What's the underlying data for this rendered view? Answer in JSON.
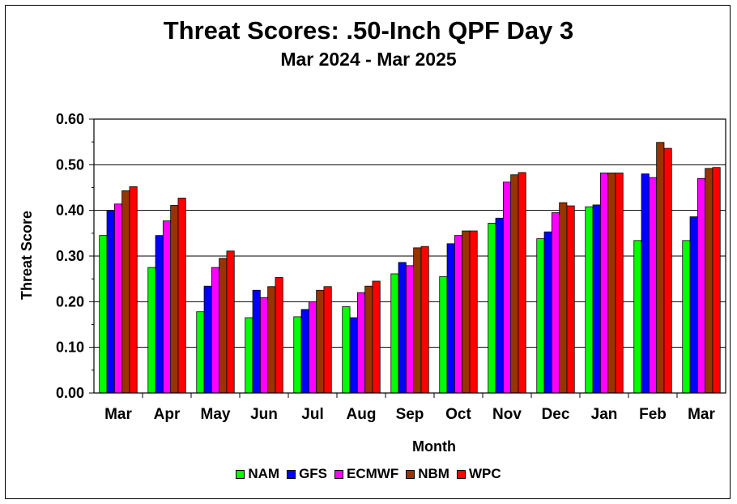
{
  "chart_data": {
    "type": "bar",
    "title": "Threat Scores:  .50-Inch QPF Day 3",
    "subtitle": "Mar 2024 - Mar 2025",
    "xlabel": "Month",
    "ylabel": "Threat Score",
    "ylim": [
      0,
      0.6
    ],
    "yticks": [
      "0.00",
      "0.10",
      "0.20",
      "0.30",
      "0.40",
      "0.50",
      "0.60"
    ],
    "grid": true,
    "legend_position": "bottom",
    "categories": [
      "Mar",
      "Apr",
      "May",
      "Jun",
      "Jul",
      "Aug",
      "Sep",
      "Oct",
      "Nov",
      "Dec",
      "Jan",
      "Feb",
      "Mar"
    ],
    "series": [
      {
        "name": "NAM",
        "color": "#00ff00",
        "values": [
          0.345,
          0.275,
          0.178,
          0.165,
          0.167,
          0.189,
          0.261,
          0.255,
          0.372,
          0.338,
          0.408,
          0.334,
          0.334
        ]
      },
      {
        "name": "GFS",
        "color": "#0000ff",
        "values": [
          0.4,
          0.345,
          0.234,
          0.225,
          0.183,
          0.165,
          0.286,
          0.327,
          0.383,
          0.353,
          0.412,
          0.48,
          0.386
        ]
      },
      {
        "name": "ECMWF",
        "color": "#ff00ff",
        "values": [
          0.414,
          0.377,
          0.275,
          0.209,
          0.2,
          0.22,
          0.279,
          0.345,
          0.462,
          0.395,
          0.482,
          0.472,
          0.47
        ]
      },
      {
        "name": "NBM",
        "color": "#993300",
        "values": [
          0.443,
          0.411,
          0.295,
          0.233,
          0.225,
          0.234,
          0.318,
          0.355,
          0.478,
          0.417,
          0.482,
          0.549,
          0.492
        ]
      },
      {
        "name": "WPC",
        "color": "#ff0000",
        "values": [
          0.452,
          0.427,
          0.311,
          0.253,
          0.233,
          0.245,
          0.321,
          0.355,
          0.483,
          0.41,
          0.482,
          0.536,
          0.494
        ]
      }
    ]
  }
}
